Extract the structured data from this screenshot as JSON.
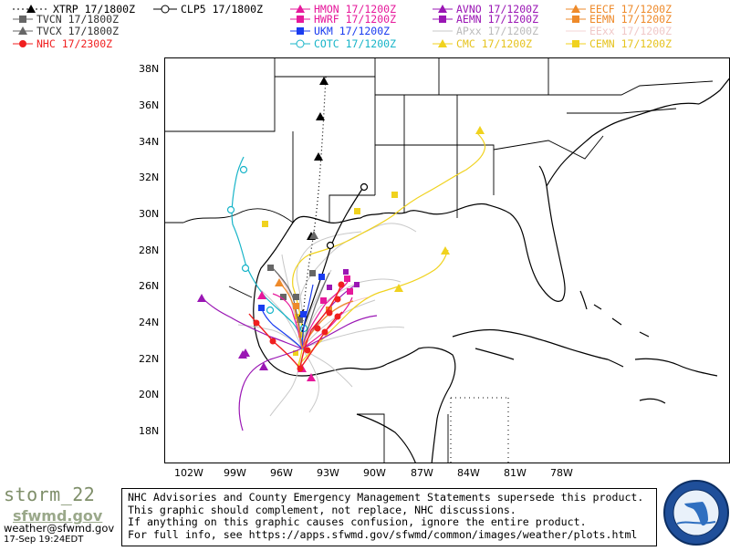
{
  "legend": [
    {
      "label": "XTRP 17/1800Z",
      "color": "#000000",
      "marker": "triangle",
      "dashed": true
    },
    {
      "label": "CLP5 17/1800Z",
      "color": "#000000",
      "marker": "circle"
    },
    {
      "label": "HMON 17/1200Z",
      "color": "#e6199b",
      "marker": "triangle"
    },
    {
      "label": "AVNO 17/1200Z",
      "color": "#9a16b4",
      "marker": "triangle"
    },
    {
      "label": "EECF 17/1200Z",
      "color": "#ee8a2a",
      "marker": "triangle"
    },
    {
      "label": "TVCN 17/1800Z",
      "color": "#666666",
      "marker": "square"
    },
    {
      "label": "HWRF 17/1200Z",
      "color": "#e6199b",
      "marker": "square"
    },
    {
      "label": "AEMN 17/1200Z",
      "color": "#9a16b4",
      "marker": "square"
    },
    {
      "label": "EEMN 17/1200Z",
      "color": "#ee8a2a",
      "marker": "square"
    },
    {
      "label": "TVCX 17/1800Z",
      "color": "#666666",
      "marker": "triangle"
    },
    {
      "label": "UKM 17/1200Z",
      "color": "#1a3cf0",
      "marker": "square"
    },
    {
      "label": "APxx 17/1200Z",
      "color": "#c8c8c8",
      "marker": "none"
    },
    {
      "label": "EExx 17/1200Z",
      "color": "#f6d5d5",
      "marker": "none"
    },
    {
      "label": "NHC 17/2300Z",
      "color": "#f01f1f",
      "marker": "circle"
    },
    {
      "label": "COTC 17/1200Z",
      "color": "#17b4c8",
      "marker": "circle"
    },
    {
      "label": "CMC 17/1200Z",
      "color": "#f0d21e",
      "marker": "triangle"
    },
    {
      "label": "CEMN 17/1200Z",
      "color": "#f0d21e",
      "marker": "square"
    }
  ],
  "map": {
    "lat_labels": [
      "38N",
      "36N",
      "34N",
      "32N",
      "30N",
      "28N",
      "26N",
      "24N",
      "22N",
      "20N",
      "18N"
    ],
    "lon_labels": [
      "102W",
      "99W",
      "96W",
      "93W",
      "90W",
      "87W",
      "84W",
      "81W",
      "78W"
    ]
  },
  "footer": {
    "brand": "storm_22",
    "brand_sub": "sfwmd.gov",
    "contact": "weather@sfwmd.gov",
    "timestamp": "17-Sep 19:24EDT",
    "notice_lines": [
      "NHC Advisories and County Emergency Management Statements supersede this product.",
      "This graphic should complement, not replace, NHC discussions.",
      "If anything on this graphic causes confusion, ignore the entire product.",
      "For full info, see  https://apps.sfwmd.gov/sfwmd/common/images/weather/plots.html"
    ]
  }
}
